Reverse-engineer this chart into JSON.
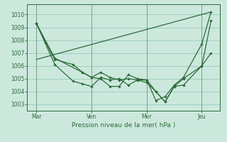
{
  "background_color": "#cce8dd",
  "grid_color": "#99ccbb",
  "line_color": "#2d6b3a",
  "xlabel": "Pression niveau de la mer( hPa )",
  "ylim": [
    1002.5,
    1010.8
  ],
  "yticks": [
    1003,
    1004,
    1005,
    1006,
    1007,
    1008,
    1009,
    1010
  ],
  "xtick_labels": [
    "Mar",
    "Ven",
    "Mer",
    "Jeu"
  ],
  "xtick_positions": [
    0.5,
    3.5,
    6.5,
    9.5
  ],
  "xlim": [
    0.0,
    10.5
  ],
  "series": [
    {
      "x": [
        0.5,
        1.0,
        1.5,
        2.5,
        3.0,
        3.5,
        4.0,
        4.5,
        5.0,
        5.5,
        6.0,
        6.5,
        7.0,
        7.5,
        8.0,
        8.5,
        9.5,
        10.0
      ],
      "y": [
        1009.3,
        1007.8,
        1006.5,
        1006.1,
        1005.5,
        1005.1,
        1005.5,
        1005.1,
        1004.9,
        1005.0,
        1004.9,
        1004.9,
        1004.0,
        1003.2,
        1004.4,
        1005.0,
        1006.0,
        1007.0
      ],
      "has_markers": true
    },
    {
      "x": [
        0.5,
        1.5,
        3.0,
        3.5,
        4.0,
        4.5,
        5.0,
        5.5,
        6.0,
        6.5,
        7.0,
        7.5,
        8.0,
        8.5,
        9.5,
        10.0
      ],
      "y": [
        1009.3,
        1006.6,
        1005.5,
        1005.1,
        1005.0,
        1004.4,
        1004.4,
        1005.3,
        1005.0,
        1004.9,
        1003.3,
        1003.6,
        1004.5,
        1005.1,
        1007.7,
        1010.2
      ],
      "has_markers": true
    },
    {
      "x": [
        0.5,
        1.5,
        2.5,
        3.0,
        3.5,
        4.0,
        4.5,
        5.0,
        5.5,
        6.0,
        6.5,
        7.0,
        7.5,
        8.0,
        8.5,
        9.5,
        10.0
      ],
      "y": [
        1009.3,
        1006.1,
        1004.8,
        1004.6,
        1004.4,
        1005.1,
        1004.9,
        1005.0,
        1004.5,
        1004.9,
        1004.7,
        1004.0,
        1003.2,
        1004.4,
        1004.5,
        1006.0,
        1009.5
      ],
      "has_markers": true
    },
    {
      "x": [
        0.5,
        10.0
      ],
      "y": [
        1006.5,
        1010.2
      ],
      "has_markers": false
    }
  ]
}
